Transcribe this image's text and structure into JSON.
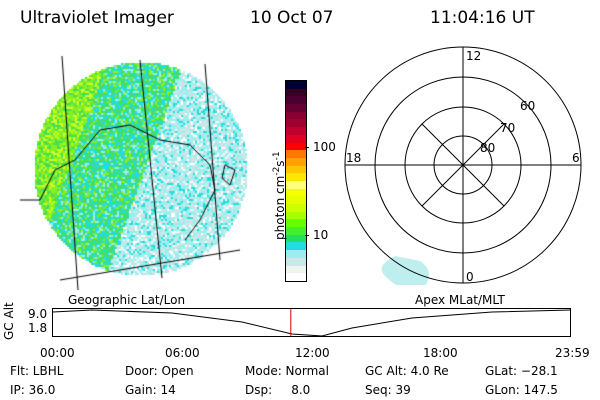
{
  "header": {
    "instrument": "Ultraviolet Imager",
    "date": "10 Oct 07",
    "time": "11:04:16 UT"
  },
  "colorbar": {
    "label": "photon cm",
    "sup1": "-2",
    "mid": "s",
    "sup2": "-1",
    "ticks": [
      "100",
      "10"
    ],
    "colors": [
      "#000033",
      "#330022",
      "#4a0030",
      "#660033",
      "#880033",
      "#a00030",
      "#c00030",
      "#e00020",
      "#ff0000",
      "#ff7700",
      "#ffa200",
      "#ffc400",
      "#ffe600",
      "#ffff80",
      "#f4ff00",
      "#e6ff00",
      "#ccff00",
      "#a8ff00",
      "#66ff00",
      "#44ee33",
      "#22dd66",
      "#22dddd",
      "#99eeee",
      "#d0e6e6",
      "#eef5ee",
      "#ffffff"
    ]
  },
  "polar": {
    "labels": {
      "top": "12",
      "left": "18",
      "right": "6",
      "bottom": "0"
    },
    "lat_labels": [
      "60",
      "70",
      "80"
    ]
  },
  "timeline": {
    "ylabel": "GC Alt",
    "yticks": [
      "9.0",
      "1.8"
    ],
    "left_caption": "Geographic Lat/Lon",
    "right_caption": "Apex MLat/MLT",
    "xticks": [
      "00:00",
      "06:00",
      "12:00",
      "18:00",
      "23:59"
    ],
    "current_time_fraction": 0.461
  },
  "status": {
    "flt": "Flt: LBHL",
    "door": "Door: Open",
    "mode": "Mode: Normal",
    "gcalt": "GC Alt: 4.0 Re",
    "glat": "GLat: −28.1",
    "ip": "IP: 36.0",
    "gain": "Gain: 14",
    "dsp": "Dsp:     8.0",
    "seq": "Seq: 39",
    "glon": "GLon: 147.5"
  }
}
